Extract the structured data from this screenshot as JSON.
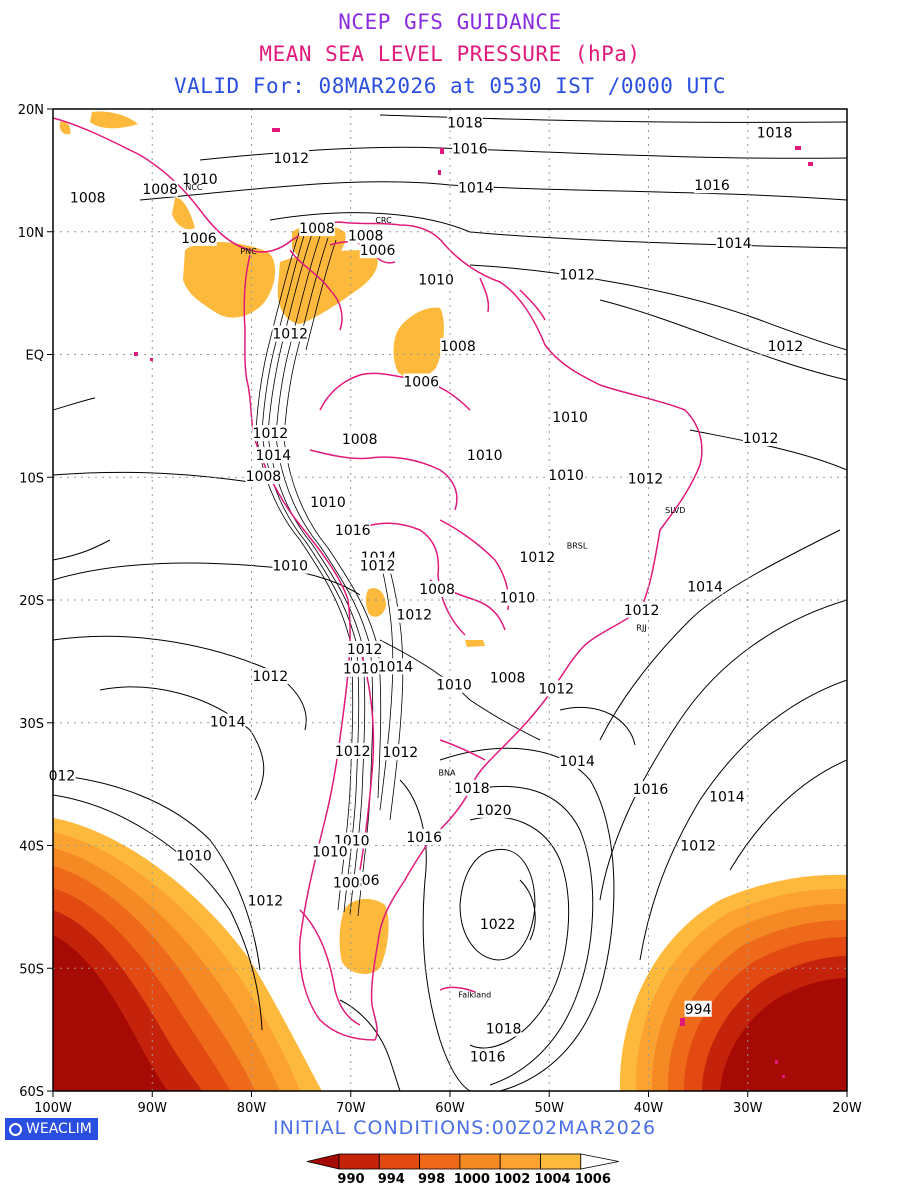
{
  "title": {
    "line1": "NCEP GFS GUIDANCE",
    "line2": "MEAN SEA LEVEL PRESSURE (hPa)",
    "line3": "VALID For: 08MAR2026 at 0530 IST /0000 UTC"
  },
  "footer": {
    "logo": "WEACLIM",
    "initial_conditions": "INITIAL CONDITIONS:00Z02MAR2026"
  },
  "colors": {
    "title1": "#8a2be2",
    "title2": "#e0197a",
    "title3": "#2a4fe0",
    "border": "#e0197a",
    "contour": "#000000",
    "shade_1006": "#fdb93b",
    "shade_1004": "#fca231",
    "shade_1002": "#f58a25",
    "shade_1000": "#ee6a1a",
    "shade_998": "#e24a12",
    "shade_994": "#c4220b",
    "shade_990": "#a60a05"
  },
  "chart_data": {
    "type": "contour",
    "lon_range": [
      -100,
      -20
    ],
    "lat_range": [
      -60,
      20
    ],
    "grid": true,
    "x_ticks": [
      "100W",
      "90W",
      "80W",
      "70W",
      "60W",
      "50W",
      "40W",
      "30W",
      "20W"
    ],
    "y_ticks": [
      "20N",
      "10N",
      "EQ",
      "10S",
      "20S",
      "30S",
      "40S",
      "50S",
      "60S"
    ],
    "legend": {
      "labels": [
        "990",
        "994",
        "998",
        "1000",
        "1002",
        "1004",
        "1006"
      ],
      "colors": [
        "#a60a05",
        "#c4220b",
        "#e24a12",
        "#ee6a1a",
        "#f58a25",
        "#fca231",
        "#fdb93b"
      ]
    },
    "contour_labels": [
      {
        "text": "1018",
        "lon": -58.5,
        "lat": 18.9
      },
      {
        "text": "1018",
        "lon": -27.3,
        "lat": 18.1
      },
      {
        "text": "1016",
        "lon": -58.0,
        "lat": 16.8
      },
      {
        "text": "1012",
        "lon": -76.0,
        "lat": 16.0
      },
      {
        "text": "1010",
        "lon": -85.2,
        "lat": 14.3
      },
      {
        "text": "1008",
        "lon": -89.2,
        "lat": 13.5
      },
      {
        "text": "1014",
        "lon": -57.4,
        "lat": 13.6
      },
      {
        "text": "1016",
        "lon": -33.6,
        "lat": 13.8
      },
      {
        "text": "1008",
        "lon": -96.5,
        "lat": 12.8
      },
      {
        "text": "1008",
        "lon": -73.4,
        "lat": 10.3
      },
      {
        "text": "1008",
        "lon": -68.5,
        "lat": 9.7
      },
      {
        "text": "1006",
        "lon": -85.3,
        "lat": 9.5
      },
      {
        "text": "1006",
        "lon": -67.3,
        "lat": 8.5
      },
      {
        "text": "1014",
        "lon": -31.4,
        "lat": 9.1
      },
      {
        "text": "1010",
        "lon": -61.4,
        "lat": 6.1
      },
      {
        "text": "1012",
        "lon": -47.2,
        "lat": 6.5
      },
      {
        "text": "1012",
        "lon": -76.1,
        "lat": 1.7
      },
      {
        "text": "1008",
        "lon": -59.2,
        "lat": 0.7
      },
      {
        "text": "1012",
        "lon": -26.2,
        "lat": 0.7
      },
      {
        "text": "1006",
        "lon": -62.9,
        "lat": -2.2
      },
      {
        "text": "1010",
        "lon": -47.9,
        "lat": -5.1
      },
      {
        "text": "1012",
        "lon": -78.1,
        "lat": -6.4
      },
      {
        "text": "1008",
        "lon": -69.1,
        "lat": -6.9
      },
      {
        "text": "1012",
        "lon": -28.7,
        "lat": -6.8
      },
      {
        "text": "1014",
        "lon": -77.8,
        "lat": -8.2
      },
      {
        "text": "1010",
        "lon": -56.5,
        "lat": -8.2
      },
      {
        "text": "1008",
        "lon": -78.8,
        "lat": -9.9
      },
      {
        "text": "1010",
        "lon": -48.3,
        "lat": -9.8
      },
      {
        "text": "1012",
        "lon": -40.3,
        "lat": -10.1
      },
      {
        "text": "1010",
        "lon": -72.3,
        "lat": -12.0
      },
      {
        "text": "1016",
        "lon": -69.8,
        "lat": -14.3
      },
      {
        "text": "1014",
        "lon": -67.2,
        "lat": -16.5
      },
      {
        "text": "1012",
        "lon": -67.3,
        "lat": -17.2
      },
      {
        "text": "1012",
        "lon": -51.2,
        "lat": -16.5
      },
      {
        "text": "1010",
        "lon": -76.1,
        "lat": -17.2
      },
      {
        "text": "1008",
        "lon": -61.3,
        "lat": -19.1
      },
      {
        "text": "1014",
        "lon": -34.3,
        "lat": -18.9
      },
      {
        "text": "1010",
        "lon": -53.2,
        "lat": -19.8
      },
      {
        "text": "1012",
        "lon": -63.6,
        "lat": -21.2
      },
      {
        "text": "1012",
        "lon": -40.7,
        "lat": -20.8
      },
      {
        "text": "1012",
        "lon": -68.6,
        "lat": -24.0
      },
      {
        "text": "1014",
        "lon": -65.5,
        "lat": -25.4
      },
      {
        "text": "1010",
        "lon": -69.0,
        "lat": -25.6
      },
      {
        "text": "1012",
        "lon": -78.1,
        "lat": -26.2
      },
      {
        "text": "1010",
        "lon": -59.6,
        "lat": -26.9
      },
      {
        "text": "1008",
        "lon": -54.2,
        "lat": -26.3
      },
      {
        "text": "1012",
        "lon": -49.3,
        "lat": -27.2
      },
      {
        "text": "1014",
        "lon": -82.4,
        "lat": -29.9
      },
      {
        "text": "1012",
        "lon": -69.8,
        "lat": -32.3
      },
      {
        "text": "1012",
        "lon": -65.0,
        "lat": -32.4
      },
      {
        "text": "1014",
        "lon": -47.2,
        "lat": -33.1
      },
      {
        "text": "012",
        "lon": -99.1,
        "lat": -34.3
      },
      {
        "text": "1018",
        "lon": -57.8,
        "lat": -35.3
      },
      {
        "text": "1016",
        "lon": -39.8,
        "lat": -35.4
      },
      {
        "text": "1014",
        "lon": -32.1,
        "lat": -36.0
      },
      {
        "text": "1020",
        "lon": -55.6,
        "lat": -37.1
      },
      {
        "text": "1016",
        "lon": -62.6,
        "lat": -39.3
      },
      {
        "text": "1010",
        "lon": -69.9,
        "lat": -39.6
      },
      {
        "text": "1012",
        "lon": -35.0,
        "lat": -40.0
      },
      {
        "text": "1010",
        "lon": -85.8,
        "lat": -40.8
      },
      {
        "text": "1010",
        "lon": -72.1,
        "lat": -40.5
      },
      {
        "text": "1008",
        "lon": -70.0,
        "lat": -43.0
      },
      {
        "text": "06",
        "lon": -68.0,
        "lat": -42.8
      },
      {
        "text": "1012",
        "lon": -78.6,
        "lat": -44.5
      },
      {
        "text": "1022",
        "lon": -55.2,
        "lat": -46.4
      },
      {
        "text": "994",
        "lon": -35.0,
        "lat": -53.3
      },
      {
        "text": "1018",
        "lon": -54.6,
        "lat": -54.9
      },
      {
        "text": "1016",
        "lon": -56.2,
        "lat": -57.2
      }
    ],
    "place_labels": [
      {
        "text": "NCC",
        "lon": -85.8,
        "lat": 13.4
      },
      {
        "text": "CRC",
        "lon": -66.7,
        "lat": 10.7
      },
      {
        "text": "PNC",
        "lon": -80.3,
        "lat": 8.2
      },
      {
        "text": "BRSL",
        "lon": -47.2,
        "lat": -15.8
      },
      {
        "text": "SLVD",
        "lon": -37.3,
        "lat": -12.9
      },
      {
        "text": "RJJ",
        "lon": -40.7,
        "lat": -22.5
      },
      {
        "text": "BNA",
        "lon": -60.3,
        "lat": -34.3
      },
      {
        "text": "Falkland",
        "lon": -57.5,
        "lat": -52.4
      }
    ]
  }
}
